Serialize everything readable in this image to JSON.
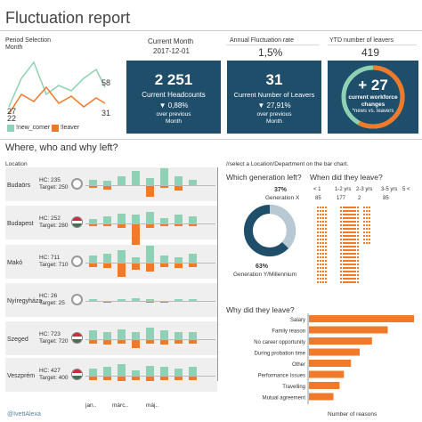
{
  "header": {
    "title": "Fluctuation report",
    "handle": "@IvettAlexa"
  },
  "period": {
    "label": "Period Selection",
    "sublabel": "Month",
    "line_values": {
      "new_comer_end": "58",
      "new_comer_start": "27",
      "leaver_start": "22",
      "leaver_end": "31"
    },
    "legend_new": "!new_comer",
    "legend_leaver": "!leaver"
  },
  "current_month": {
    "label": "Current Month",
    "value": "2017-12-01"
  },
  "annual_rate": {
    "label": "Annual Fluctuation rate",
    "value": "1,5%"
  },
  "ytd": {
    "label": "YTD number of leavers",
    "value": "419"
  },
  "kpi1": {
    "value": "2 251",
    "label": "Current Headcounts",
    "change": "▼ 0,88%",
    "sub1": "over previous",
    "sub2": "Month"
  },
  "kpi2": {
    "value": "31",
    "label": "Current Number of Leavers",
    "change": "▼ 27,91%",
    "sub1": "over previous",
    "sub2": "Month"
  },
  "kpi3": {
    "value": "+ 27",
    "label1": "current workforce",
    "label2": "changes",
    "sub": "*news vs. leavers"
  },
  "section": {
    "title": "Where, who and why left?",
    "location_label": "Location",
    "hint": "//select a Location/Department on the bar chart."
  },
  "locations": [
    {
      "name": "Budaörs",
      "hc": "HC: 235",
      "target": "Target: 250"
    },
    {
      "name": "Budapest",
      "hc": "HC: 252",
      "target": "Target: 280"
    },
    {
      "name": "Makó",
      "hc": "HC: 711",
      "target": "Target: 710"
    },
    {
      "name": "Nyíregyháza",
      "hc": "HC: 26",
      "target": "Target: 25"
    },
    {
      "name": "Szeged",
      "hc": "HC: 723",
      "target": "Target: 720"
    },
    {
      "name": "Veszprém",
      "hc": "HC: 427",
      "target": "Target: 400"
    }
  ],
  "x_ticks": [
    "jan..",
    "márc..",
    "máj.."
  ],
  "generation": {
    "title": "Which generation left?",
    "pct_x": "37%",
    "label_x": "Generation X",
    "pct_y": "63%",
    "label_y": "Generation Y/Millennium",
    "share_x": 0.37
  },
  "when": {
    "title": "When did they leave?",
    "headers": [
      "< 1",
      "1-2 yrs",
      "2-3 yrs",
      "3-5 yrs",
      "5 <"
    ],
    "values": [
      "85",
      "177",
      "2",
      "85",
      ""
    ]
  },
  "why": {
    "title": "Why did they leave?",
    "x_label": "Number of reasons",
    "chart_data": {
      "type": "bar",
      "categories": [
        "Salary",
        "Family reason",
        "No career opportunity",
        "During probation time",
        "Other",
        "Performance Issues",
        "Travelling",
        "Mutual agreement"
      ],
      "values": [
        120,
        90,
        72,
        58,
        48,
        40,
        35,
        28
      ]
    }
  },
  "colors": {
    "navy": "#1f4e6b",
    "orange": "#f07a2a",
    "teal": "#8fd1b4"
  }
}
